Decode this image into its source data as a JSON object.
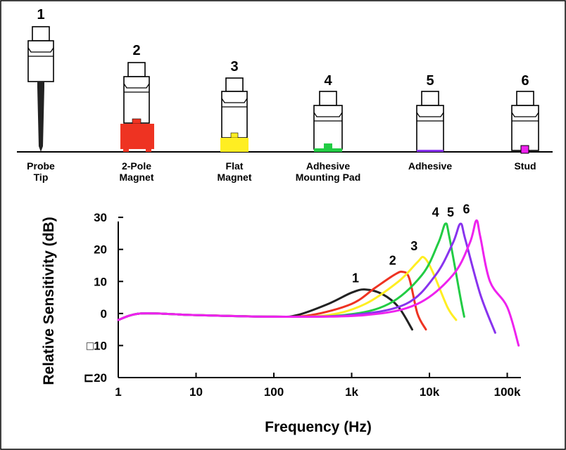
{
  "mounts": [
    {
      "number": "1",
      "label_line1": "Probe",
      "label_line2": "Tip",
      "accent": "#222222"
    },
    {
      "number": "2",
      "label_line1": "2-Pole",
      "label_line2": "Magnet",
      "accent": "#ee3322"
    },
    {
      "number": "3",
      "label_line1": "Flat",
      "label_line2": "Magnet",
      "accent": "#ffee22"
    },
    {
      "number": "4",
      "label_line1": "Adhesive",
      "label_line2": "Mounting Pad",
      "accent": "#22cc44"
    },
    {
      "number": "5",
      "label_line1": "Adhesive",
      "label_line2": "",
      "accent": "#8833ee"
    },
    {
      "number": "6",
      "label_line1": "Stud",
      "label_line2": "",
      "accent": "#ee22ee"
    }
  ],
  "chart_data": {
    "type": "line",
    "xlabel": "Frequency (Hz)",
    "ylabel": "Relative Sensitivity (dB)",
    "x_scale": "log",
    "xlim": [
      1,
      150000
    ],
    "ylim": [
      -20,
      32
    ],
    "x_ticks": [
      {
        "value": 1,
        "label": "1"
      },
      {
        "value": 10,
        "label": "10"
      },
      {
        "value": 100,
        "label": "100"
      },
      {
        "value": 1000,
        "label": "1k"
      },
      {
        "value": 10000,
        "label": "10k"
      },
      {
        "value": 100000,
        "label": "100k"
      }
    ],
    "y_ticks": [
      {
        "value": 30,
        "label": "30"
      },
      {
        "value": 20,
        "label": "20"
      },
      {
        "value": 10,
        "label": "10"
      },
      {
        "value": 0,
        "label": "0"
      },
      {
        "value": -10,
        "label": "□10"
      },
      {
        "value": -20,
        "label": "⊏20"
      }
    ],
    "grid": false,
    "legend": "none",
    "series": [
      {
        "name": "1",
        "color": "#222222",
        "points": [
          [
            1,
            -2
          ],
          [
            2,
            0
          ],
          [
            10,
            -0.5
          ],
          [
            100,
            -1
          ],
          [
            200,
            -0.5
          ],
          [
            500,
            3
          ],
          [
            1000,
            6.5
          ],
          [
            1500,
            7.5
          ],
          [
            2500,
            6
          ],
          [
            4000,
            2
          ],
          [
            6000,
            -5
          ]
        ]
      },
      {
        "name": "2",
        "color": "#ee3322",
        "points": [
          [
            1,
            -2
          ],
          [
            2,
            0
          ],
          [
            10,
            -0.5
          ],
          [
            100,
            -1
          ],
          [
            300,
            -0.5
          ],
          [
            1000,
            3
          ],
          [
            2000,
            8
          ],
          [
            3500,
            12
          ],
          [
            4500,
            13
          ],
          [
            5500,
            11
          ],
          [
            7000,
            0
          ],
          [
            9000,
            -5
          ]
        ]
      },
      {
        "name": "3",
        "color": "#ffee22",
        "points": [
          [
            1,
            -2
          ],
          [
            2,
            0
          ],
          [
            10,
            -0.5
          ],
          [
            100,
            -1
          ],
          [
            500,
            -0.5
          ],
          [
            1500,
            3
          ],
          [
            4000,
            10
          ],
          [
            7000,
            16
          ],
          [
            8500,
            17.5
          ],
          [
            11000,
            13
          ],
          [
            17000,
            2
          ],
          [
            22000,
            -2
          ]
        ]
      },
      {
        "name": "4",
        "color": "#22cc44",
        "points": [
          [
            1,
            -2
          ],
          [
            2,
            0
          ],
          [
            10,
            -0.5
          ],
          [
            100,
            -1
          ],
          [
            800,
            -0.5
          ],
          [
            3000,
            3
          ],
          [
            8000,
            12
          ],
          [
            13000,
            22
          ],
          [
            16000,
            28
          ],
          [
            18000,
            24
          ],
          [
            25000,
            5
          ],
          [
            28000,
            -1
          ]
        ]
      },
      {
        "name": "5",
        "color": "#8833ee",
        "points": [
          [
            1,
            -2
          ],
          [
            2,
            0
          ],
          [
            10,
            -0.5
          ],
          [
            100,
            -1
          ],
          [
            1000,
            -0.5
          ],
          [
            5000,
            3
          ],
          [
            12000,
            12
          ],
          [
            20000,
            22
          ],
          [
            25000,
            28
          ],
          [
            29000,
            23
          ],
          [
            45000,
            6
          ],
          [
            70000,
            -6
          ]
        ]
      },
      {
        "name": "6",
        "color": "#ee22ee",
        "points": [
          [
            1,
            -2
          ],
          [
            2,
            0
          ],
          [
            10,
            -0.5
          ],
          [
            100,
            -1
          ],
          [
            1500,
            -0.5
          ],
          [
            7000,
            3
          ],
          [
            20000,
            12
          ],
          [
            33000,
            22
          ],
          [
            40000,
            29
          ],
          [
            45000,
            24
          ],
          [
            60000,
            10
          ],
          [
            100000,
            2
          ],
          [
            140000,
            -10
          ]
        ]
      }
    ]
  }
}
